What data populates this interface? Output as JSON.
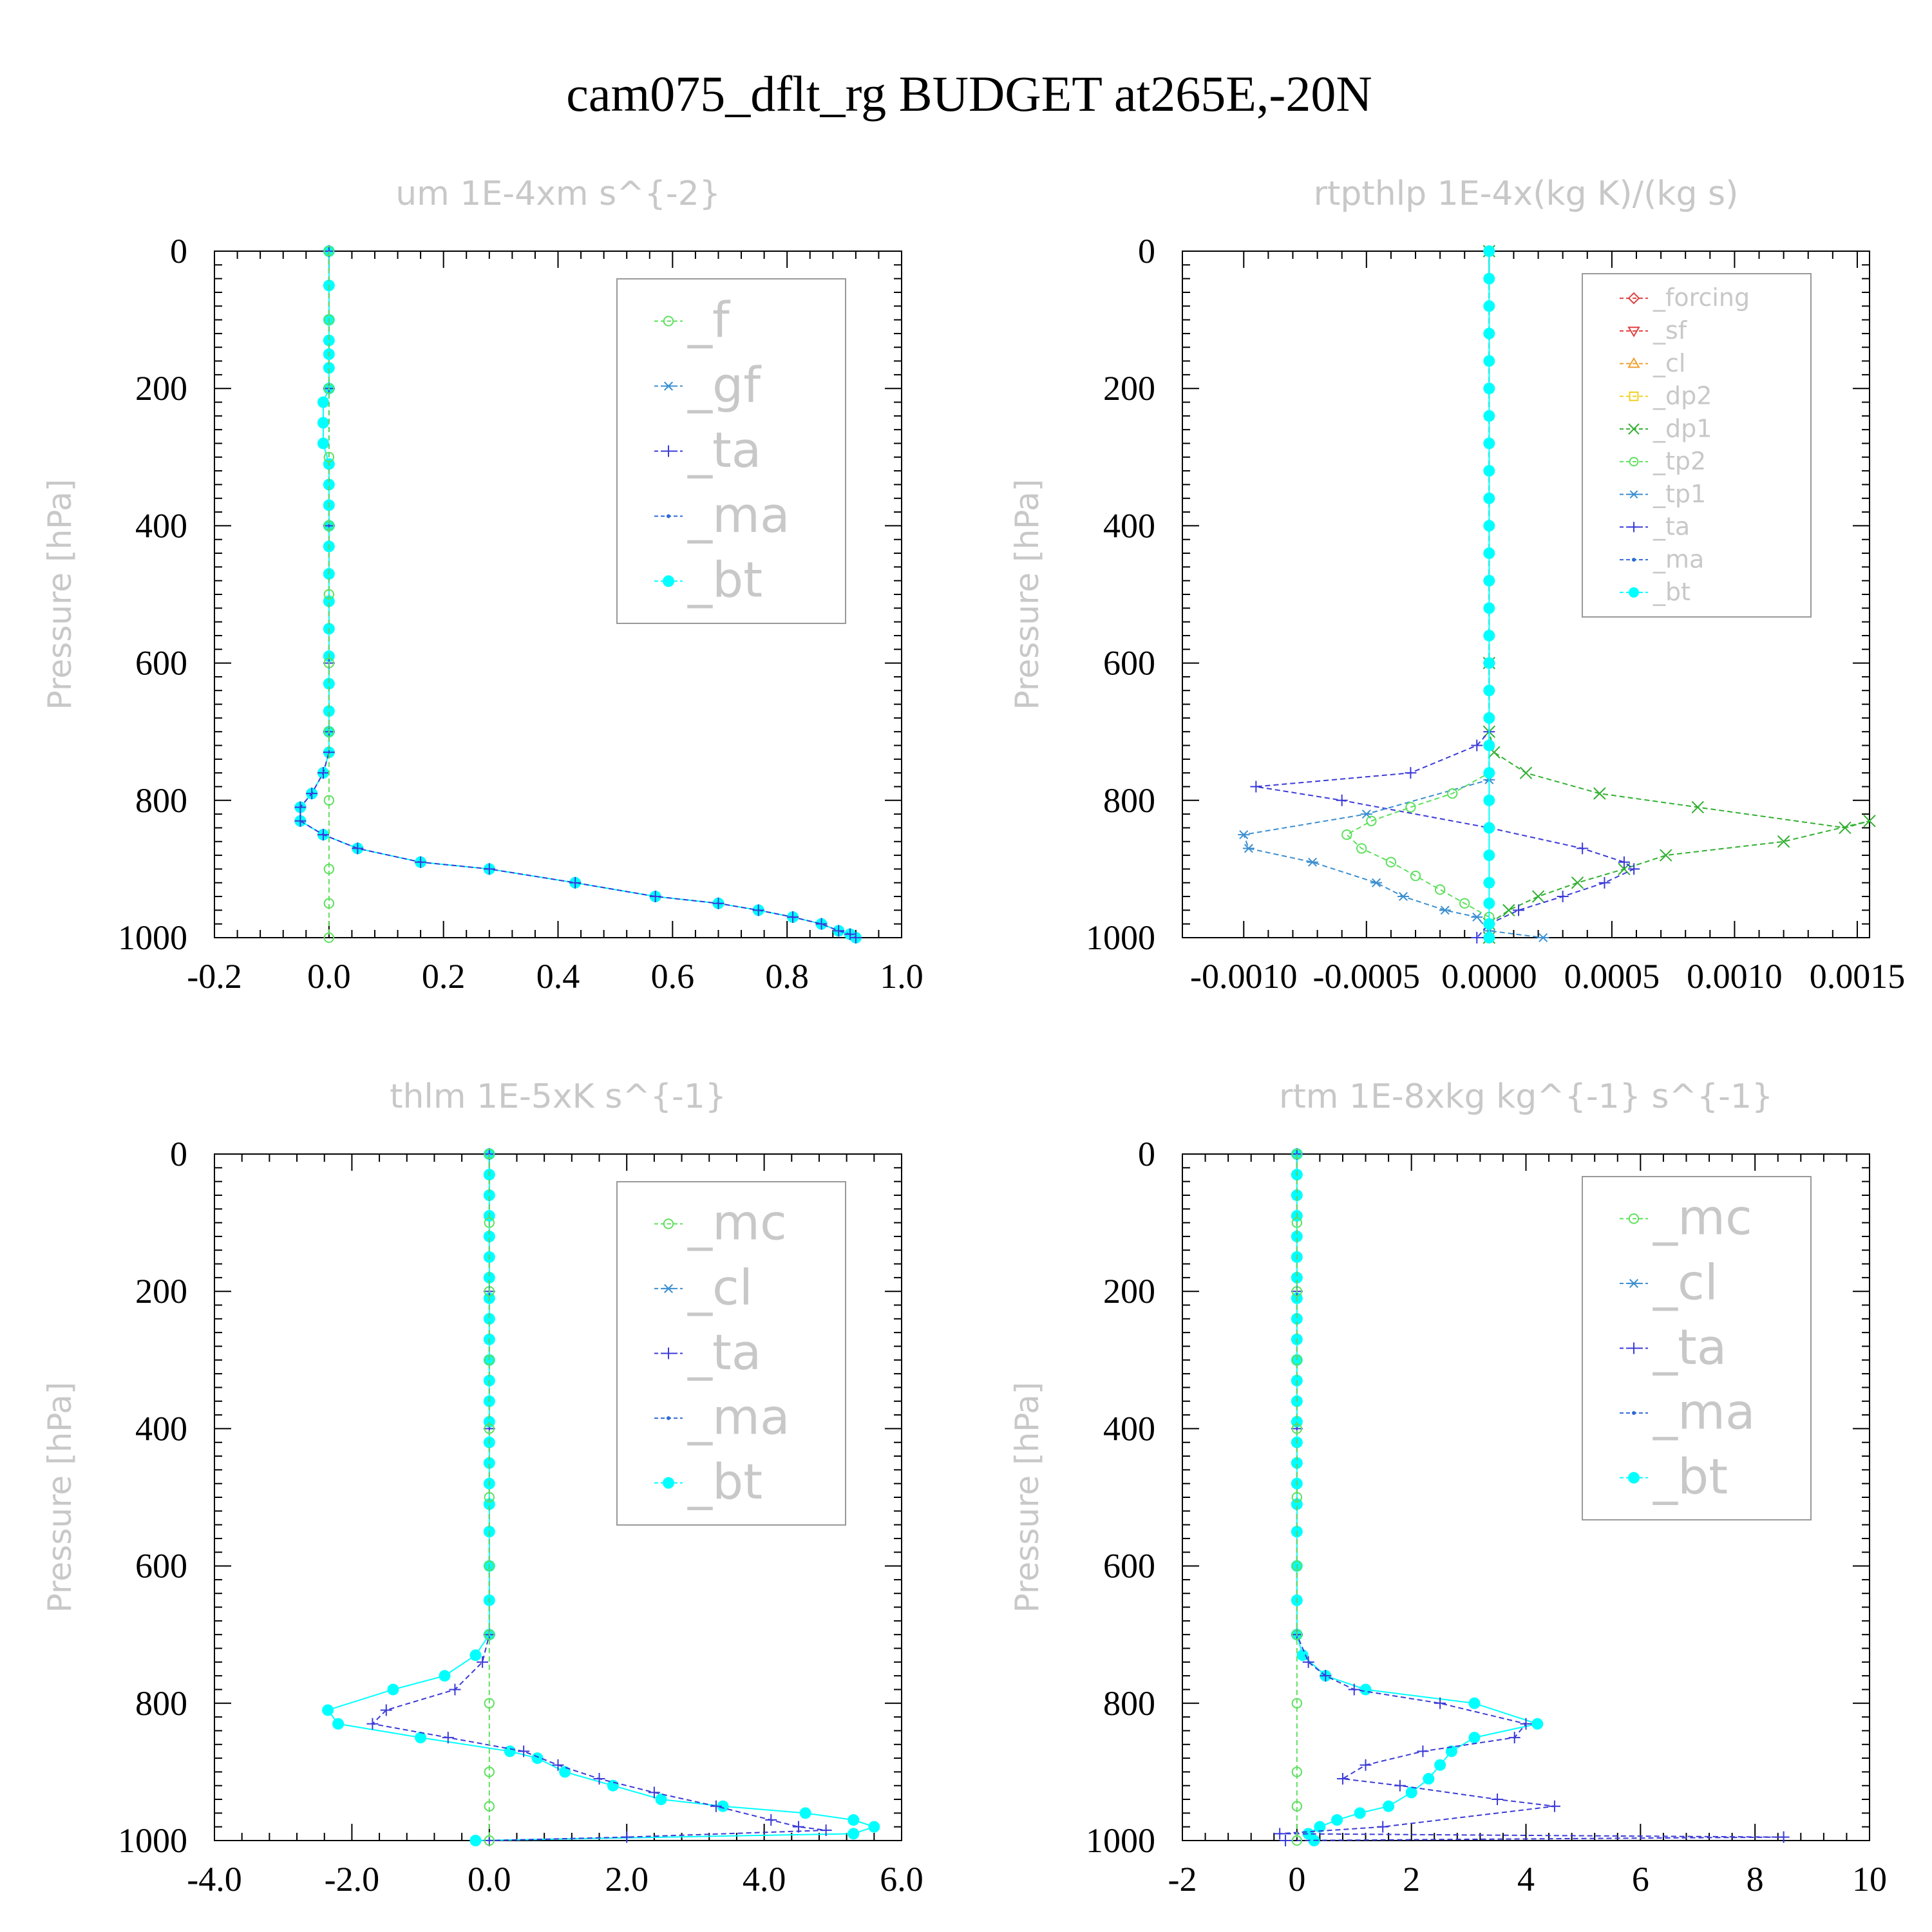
{
  "title": "cam075_dflt_rg  BUDGET at265E,-20N",
  "chart_data": [
    {
      "type": "line",
      "title": "um  1E-4xm s^{-2}",
      "ylabel": "Pressure [hPa]",
      "xlim": [
        -0.2,
        1.0
      ],
      "xticks": [
        "-0.2",
        "0.0",
        "0.2",
        "0.4",
        "0.6",
        "0.8",
        "1.0"
      ],
      "ylim": [
        1000,
        0
      ],
      "yticks": [
        "0",
        "200",
        "400",
        "600",
        "800",
        "1000"
      ],
      "legend_size": "large",
      "legend": [
        {
          "label": "_f",
          "color": "#5ee05e",
          "marker": "circle"
        },
        {
          "label": "_gf",
          "color": "#3c8fd0",
          "marker": "star"
        },
        {
          "label": "_ta",
          "color": "#3a3ad8",
          "marker": "plus"
        },
        {
          "label": "_ma",
          "color": "#2e6ad8",
          "marker": "dot"
        },
        {
          "label": "_bt",
          "color": "#00ffff",
          "marker": "filled"
        }
      ],
      "series": [
        {
          "name": "_bt",
          "color": "#00ffff",
          "marker": "filled",
          "x": [
            0.0,
            0.0,
            0.0,
            0.0,
            0.0,
            0.0,
            0.0,
            -0.01,
            -0.01,
            -0.01,
            0.0,
            0.0,
            0.0,
            0.0,
            0.0,
            0.0,
            0.0,
            0.0,
            0.0,
            0.0,
            0.0,
            0.0,
            0.0,
            -0.01,
            -0.03,
            -0.05,
            -0.05,
            -0.01,
            0.05,
            0.16,
            0.28,
            0.43,
            0.57,
            0.68,
            0.75,
            0.81,
            0.86,
            0.89,
            0.91,
            0.92
          ],
          "y": [
            0,
            50,
            100,
            130,
            150,
            170,
            200,
            220,
            250,
            280,
            310,
            340,
            370,
            400,
            430,
            470,
            510,
            550,
            590,
            630,
            670,
            700,
            730,
            760,
            790,
            810,
            830,
            850,
            870,
            890,
            900,
            920,
            940,
            950,
            960,
            970,
            980,
            990,
            995,
            1000
          ]
        },
        {
          "name": "_ta",
          "color": "#3a3ad8",
          "marker": "plus",
          "x": [
            0.0,
            0.0,
            0.0,
            0.0,
            0.0,
            0.0,
            -0.01,
            -0.03,
            -0.05,
            -0.05,
            -0.01,
            0.05,
            0.16,
            0.28,
            0.43,
            0.57,
            0.68,
            0.75,
            0.81,
            0.86,
            0.89,
            0.91,
            0.92
          ],
          "y": [
            0,
            200,
            400,
            600,
            700,
            730,
            760,
            790,
            810,
            830,
            850,
            870,
            890,
            900,
            920,
            940,
            950,
            960,
            970,
            980,
            990,
            995,
            1000
          ]
        },
        {
          "name": "_f",
          "color": "#5ee05e",
          "marker": "circle",
          "x": [
            0,
            0,
            0,
            0,
            0,
            0,
            0,
            0,
            0,
            0,
            0,
            0
          ],
          "y": [
            0,
            100,
            200,
            300,
            400,
            500,
            600,
            700,
            800,
            900,
            950,
            1000
          ]
        }
      ]
    },
    {
      "type": "line",
      "title": "rtpthlp  1E-4x(kg K)/(kg s)",
      "ylabel": "Pressure [hPa]",
      "xlim": [
        -0.00125,
        0.00155
      ],
      "xticks": [
        "-0.0010",
        "-0.0005",
        "0.0000",
        "0.0005",
        "0.0010",
        "0.0015"
      ],
      "ylim": [
        1000,
        0
      ],
      "yticks": [
        "0",
        "200",
        "400",
        "600",
        "800",
        "1000"
      ],
      "legend_size": "small",
      "legend": [
        {
          "label": "_forcing",
          "color": "#e04040",
          "marker": "diamond"
        },
        {
          "label": "_sf",
          "color": "#e04040",
          "marker": "triangle-down"
        },
        {
          "label": "_cl",
          "color": "#f0a030",
          "marker": "triangle-up"
        },
        {
          "label": "_dp2",
          "color": "#f0d020",
          "marker": "square"
        },
        {
          "label": "_dp1",
          "color": "#30b030",
          "marker": "x"
        },
        {
          "label": "_tp2",
          "color": "#5ee05e",
          "marker": "circle"
        },
        {
          "label": "_tp1",
          "color": "#3c8fd0",
          "marker": "star"
        },
        {
          "label": "_ta",
          "color": "#3a3ad8",
          "marker": "plus"
        },
        {
          "label": "_ma",
          "color": "#2e6ad8",
          "marker": "dot"
        },
        {
          "label": "_bt",
          "color": "#00ffff",
          "marker": "filled"
        }
      ],
      "series": [
        {
          "name": "_dp1",
          "color": "#30b030",
          "marker": "x",
          "x": [
            0.0,
            0.0,
            0.0,
            2e-05,
            0.00015,
            0.00045,
            0.00085,
            0.00145,
            0.00155,
            0.0012,
            0.00072,
            0.00055,
            0.00036,
            0.0002,
            8e-05,
            0.0,
            0.0
          ],
          "y": [
            0,
            600,
            700,
            730,
            760,
            790,
            810,
            840,
            830,
            860,
            880,
            900,
            920,
            940,
            960,
            980,
            1000
          ]
        },
        {
          "name": "_ta",
          "color": "#3a3ad8",
          "marker": "plus",
          "x": [
            0.0,
            0.0,
            0.0,
            -5e-05,
            -0.00032,
            -0.00095,
            -0.0006,
            0.0,
            0.00038,
            0.00055,
            0.00059,
            0.00047,
            0.0003,
            0.00012,
            0.0,
            -5e-05
          ],
          "y": [
            0,
            600,
            700,
            720,
            760,
            780,
            800,
            840,
            870,
            890,
            900,
            920,
            940,
            960,
            980,
            1000
          ]
        },
        {
          "name": "_tp1",
          "color": "#3c8fd0",
          "marker": "star",
          "x": [
            0.0,
            0.0,
            0.0,
            -0.0005,
            -0.001,
            -0.00098,
            -0.00072,
            -0.00046,
            -0.00035,
            -0.00018,
            -5e-05,
            0.0,
            0.00022
          ],
          "y": [
            0,
            600,
            770,
            820,
            850,
            870,
            890,
            920,
            940,
            960,
            970,
            990,
            1000
          ]
        },
        {
          "name": "_tp2",
          "color": "#5ee05e",
          "marker": "circle",
          "x": [
            0.0,
            0.0,
            0.0,
            -0.00015,
            -0.00032,
            -0.00048,
            -0.00058,
            -0.00052,
            -0.0004,
            -0.0003,
            -0.0002,
            -0.0001,
            0.0,
            0.0
          ],
          "y": [
            0,
            600,
            760,
            790,
            810,
            830,
            850,
            870,
            890,
            910,
            930,
            950,
            970,
            1000
          ]
        },
        {
          "name": "_bt",
          "color": "#00ffff",
          "marker": "filled",
          "x": [
            0,
            0,
            0,
            0,
            0,
            0,
            0,
            0,
            0,
            0,
            0,
            0,
            0,
            0,
            0,
            0,
            0,
            0,
            0,
            0,
            0,
            0,
            0,
            0,
            0,
            0,
            0
          ],
          "y": [
            0,
            40,
            80,
            120,
            160,
            200,
            240,
            280,
            320,
            360,
            400,
            440,
            480,
            520,
            560,
            600,
            640,
            680,
            720,
            760,
            800,
            840,
            880,
            920,
            950,
            980,
            1000
          ]
        }
      ]
    },
    {
      "type": "line",
      "title": "thlm  1E-5xK s^{-1}",
      "ylabel": "Pressure [hPa]",
      "xlim": [
        -4.0,
        6.0
      ],
      "xticks": [
        "-4.0",
        "-2.0",
        "0.0",
        "2.0",
        "4.0",
        "6.0"
      ],
      "ylim": [
        1000,
        0
      ],
      "yticks": [
        "0",
        "200",
        "400",
        "600",
        "800",
        "1000"
      ],
      "legend_size": "large",
      "legend": [
        {
          "label": "_mc",
          "color": "#5ee05e",
          "marker": "circle"
        },
        {
          "label": "_cl",
          "color": "#3c8fd0",
          "marker": "star"
        },
        {
          "label": "_ta",
          "color": "#3a3ad8",
          "marker": "plus"
        },
        {
          "label": "_ma",
          "color": "#2e6ad8",
          "marker": "dot"
        },
        {
          "label": "_bt",
          "color": "#00ffff",
          "marker": "filled"
        }
      ],
      "series": [
        {
          "name": "_bt",
          "color": "#00ffff",
          "marker": "filled",
          "x": [
            0,
            0,
            0,
            0,
            0,
            0,
            0,
            0,
            0,
            0,
            0,
            0,
            0,
            0,
            0,
            0,
            0,
            0,
            0,
            0,
            0,
            0,
            -0.2,
            -0.65,
            -1.4,
            -2.35,
            -2.2,
            -1.0,
            0.3,
            0.7,
            1.1,
            1.8,
            2.5,
            3.4,
            4.6,
            5.3,
            5.6,
            5.3,
            -0.2
          ],
          "y": [
            0,
            30,
            60,
            90,
            120,
            150,
            180,
            210,
            240,
            270,
            300,
            330,
            360,
            390,
            420,
            450,
            480,
            510,
            550,
            600,
            650,
            700,
            730,
            760,
            780,
            810,
            830,
            850,
            870,
            880,
            900,
            920,
            940,
            950,
            960,
            970,
            980,
            990,
            1000
          ]
        },
        {
          "name": "_ta",
          "color": "#3a3ad8",
          "marker": "plus",
          "x": [
            0,
            0,
            0,
            0,
            -0.1,
            -0.5,
            -1.5,
            -1.7,
            -0.6,
            0.5,
            1.0,
            1.6,
            2.4,
            3.3,
            4.1,
            4.5,
            4.9,
            2.0,
            0.0
          ],
          "y": [
            0,
            200,
            400,
            700,
            740,
            780,
            810,
            830,
            850,
            870,
            890,
            910,
            930,
            950,
            970,
            980,
            985,
            995,
            1000
          ]
        },
        {
          "name": "_mc",
          "color": "#5ee05e",
          "marker": "circle",
          "x": [
            0,
            0,
            0,
            0,
            0,
            0,
            0,
            0,
            0,
            0,
            0,
            0
          ],
          "y": [
            0,
            100,
            200,
            300,
            400,
            500,
            600,
            700,
            800,
            900,
            950,
            1000
          ]
        }
      ]
    },
    {
      "type": "line",
      "title": "rtm  1E-8xkg kg^{-1} s^{-1}",
      "ylabel": "Pressure [hPa]",
      "xlim": [
        -2,
        10
      ],
      "xticks": [
        "-2",
        "0",
        "2",
        "4",
        "6",
        "8",
        "10"
      ],
      "ylim": [
        1000,
        0
      ],
      "yticks": [
        "0",
        "200",
        "400",
        "600",
        "800",
        "1000"
      ],
      "legend_size": "large",
      "legend": [
        {
          "label": "_mc",
          "color": "#5ee05e",
          "marker": "circle"
        },
        {
          "label": "_cl",
          "color": "#3c8fd0",
          "marker": "star"
        },
        {
          "label": "_ta",
          "color": "#3a3ad8",
          "marker": "plus"
        },
        {
          "label": "_ma",
          "color": "#2e6ad8",
          "marker": "dot"
        },
        {
          "label": "_bt",
          "color": "#00ffff",
          "marker": "filled"
        }
      ],
      "series": [
        {
          "name": "_bt",
          "color": "#00ffff",
          "marker": "filled",
          "x": [
            0,
            0,
            0,
            0,
            0,
            0,
            0,
            0,
            0,
            0,
            0,
            0,
            0,
            0,
            0,
            0,
            0,
            0,
            0,
            0,
            0,
            0,
            0.1,
            0.5,
            1.2,
            3.1,
            4.2,
            3.1,
            2.7,
            2.5,
            2.3,
            2.0,
            1.6,
            1.1,
            0.7,
            0.4,
            0.2,
            0.3
          ],
          "y": [
            0,
            30,
            60,
            90,
            120,
            150,
            180,
            210,
            240,
            270,
            300,
            330,
            360,
            390,
            420,
            450,
            480,
            510,
            550,
            600,
            650,
            700,
            730,
            760,
            780,
            800,
            830,
            850,
            870,
            890,
            910,
            930,
            950,
            960,
            970,
            980,
            990,
            1000
          ]
        },
        {
          "name": "_ta",
          "color": "#3a3ad8",
          "marker": "plus",
          "x": [
            0,
            0,
            0,
            0,
            0.2,
            0.5,
            1.0,
            2.5,
            4.0,
            3.8,
            2.2,
            1.2,
            0.8,
            1.8,
            3.5,
            4.5,
            1.5,
            -0.3,
            8.5,
            -0.2
          ],
          "y": [
            0,
            200,
            400,
            700,
            740,
            760,
            780,
            800,
            830,
            850,
            870,
            890,
            910,
            920,
            940,
            950,
            980,
            990,
            995,
            1000
          ]
        },
        {
          "name": "_mc",
          "color": "#5ee05e",
          "marker": "circle",
          "x": [
            0,
            0,
            0,
            0,
            0,
            0,
            0,
            0,
            0,
            0,
            0,
            0
          ],
          "y": [
            0,
            100,
            200,
            300,
            400,
            500,
            600,
            700,
            800,
            900,
            950,
            1000
          ]
        }
      ]
    }
  ]
}
